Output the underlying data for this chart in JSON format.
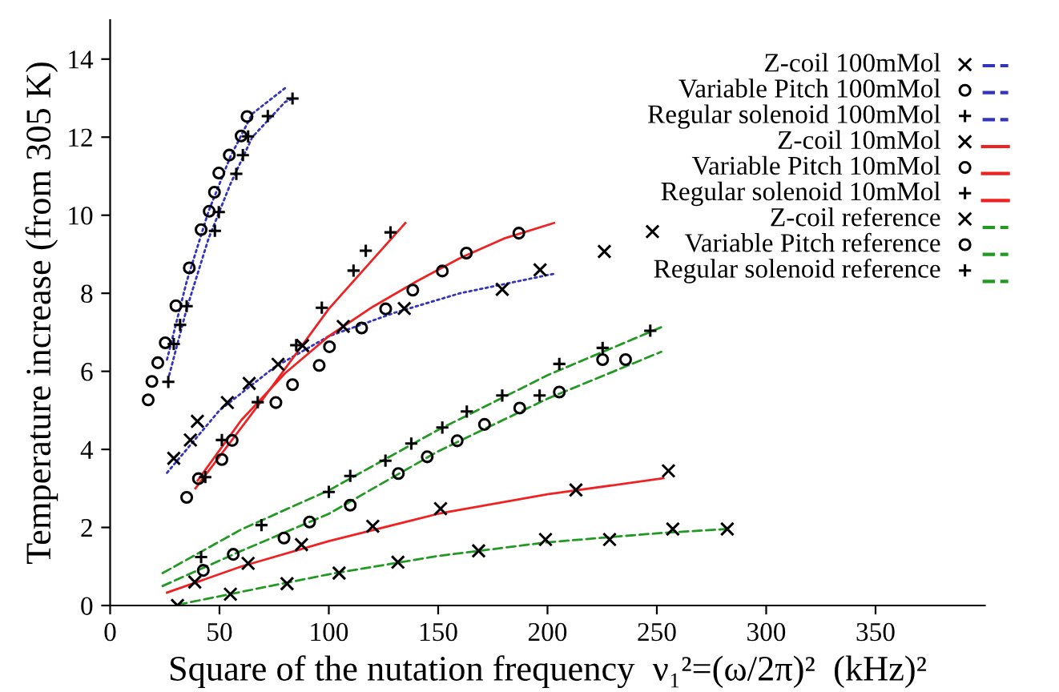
{
  "chart_data": {
    "type": "scatter",
    "xlabel": "Square of the nutation frequency  ν₁²=(ω/2π)²  (kHz)²",
    "ylabel": "Temperature increase (from 305 K)",
    "xlim": [
      0,
      400
    ],
    "ylim": [
      0,
      15
    ],
    "xticks": [
      0,
      50,
      100,
      150,
      200,
      250,
      300,
      350
    ],
    "yticks": [
      0,
      2,
      4,
      6,
      8,
      10,
      12,
      14
    ],
    "grid": false,
    "legend": "top right",
    "series": [
      {
        "name": "Z-coil 100mMol",
        "color": "#000000",
        "marker": "cross",
        "x": [
          29.1,
          36.7,
          39.9,
          53.6,
          63.6,
          76.8,
          88,
          106.6,
          134.5,
          179.3,
          196.6,
          226,
          248
        ],
        "values": [
          3.77,
          4.24,
          4.72,
          5.2,
          5.69,
          6.18,
          6.66,
          7.15,
          7.61,
          8.1,
          8.6,
          9.07,
          9.58
        ]
      },
      {
        "name": "Variable Pitch 100mMol",
        "color": "#000000",
        "marker": "circle",
        "x": [
          17.4,
          19.1,
          21.8,
          25.2,
          30.1,
          36.2,
          41.6,
          45.3,
          47.7,
          49.7,
          54.5,
          59.9,
          62.6
        ],
        "values": [
          5.27,
          5.74,
          6.22,
          6.73,
          7.68,
          8.65,
          9.63,
          10.1,
          10.59,
          11.08,
          11.54,
          12.03,
          12.53
        ]
      },
      {
        "name": "Regular solenoid 100mMol",
        "color": "#000000",
        "marker": "plus",
        "x": [
          26.6,
          29.1,
          32,
          35,
          47.9,
          49.7,
          57.7,
          60.7,
          63.1,
          72.1,
          83.4
        ],
        "values": [
          5.73,
          6.7,
          7.19,
          7.67,
          9.6,
          10.08,
          11.06,
          11.54,
          12.02,
          12.54,
          12.99
        ]
      },
      {
        "name": "Z-coil 10mMol",
        "color": "#000000",
        "marker": "cross",
        "x": [
          38.7,
          63.1,
          87.5,
          120.1,
          151.1,
          213,
          255.3
        ],
        "values": [
          0.6,
          1.08,
          1.56,
          2.03,
          2.48,
          2.96,
          3.45
        ]
      },
      {
        "name": "Variable Pitch 10mMol",
        "color": "#000000",
        "marker": "circle",
        "x": [
          35,
          40.4,
          51.1,
          55.8,
          75.8,
          83.4,
          95.6,
          100.3,
          115,
          126,
          138.4,
          151.9,
          162.9,
          186.9
        ],
        "values": [
          2.77,
          3.25,
          3.74,
          4.23,
          5.2,
          5.66,
          6.15,
          6.63,
          7.11,
          7.6,
          8.08,
          8.57,
          9.03,
          9.54
        ]
      },
      {
        "name": "Regular solenoid 10mMol",
        "color": "#000000",
        "marker": "plus",
        "x": [
          43.5,
          51.1,
          67.5,
          85.1,
          96.8,
          111.3,
          116.9,
          128.2
        ],
        "values": [
          3.29,
          4.24,
          5.21,
          6.67,
          7.63,
          8.58,
          9.09,
          9.56
        ]
      },
      {
        "name": "Z-coil reference",
        "color": "#000000",
        "marker": "cross",
        "x": [
          30.8,
          55,
          80.9,
          104.7,
          131.6,
          168.5,
          199.1,
          228.4,
          257.3,
          282.2
        ],
        "values": [
          0.0,
          0.29,
          0.56,
          0.83,
          1.11,
          1.4,
          1.69,
          1.69,
          1.96,
          1.96
        ]
      },
      {
        "name": "Variable Pitch reference",
        "color": "#000000",
        "marker": "circle",
        "x": [
          42.6,
          56.3,
          79.5,
          91.2,
          109.8,
          131.8,
          145,
          158.7,
          171.2,
          187.3,
          205.4,
          225.2,
          235.7
        ],
        "values": [
          0.9,
          1.31,
          1.73,
          2.14,
          2.57,
          3.38,
          3.81,
          4.22,
          4.64,
          5.06,
          5.47,
          6.3,
          6.3
        ]
      },
      {
        "name": "Regular solenoid reference",
        "color": "#000000",
        "marker": "plus",
        "x": [
          41.6,
          69.2,
          100,
          109.8,
          125.9,
          137.7,
          151.9,
          163.1,
          179.3,
          196.4,
          205.4,
          225.2,
          247
        ],
        "values": [
          1.24,
          2.06,
          2.91,
          3.32,
          3.71,
          4.15,
          4.56,
          4.97,
          5.38,
          5.38,
          6.19,
          6.6,
          7.04
        ]
      },
      {
        "type": "line",
        "color": "#3333bb",
        "line_style": "dotted",
        "x": [
          26,
          50,
          75,
          100,
          130,
          160,
          203
        ],
        "values": [
          3.4,
          5.0,
          6.1,
          6.9,
          7.5,
          8.0,
          8.5
        ]
      },
      {
        "type": "line",
        "color": "#3333bb",
        "line_style": "dotted",
        "x": [
          26,
          35,
          45,
          55,
          65,
          81
        ],
        "values": [
          6.3,
          8.3,
          10.1,
          11.5,
          12.6,
          13.3
        ]
      },
      {
        "type": "line",
        "color": "#3333bb",
        "line_style": "dotted",
        "x": [
          27,
          35,
          45,
          55,
          65,
          80,
          84
        ],
        "values": [
          5.9,
          7.6,
          9.4,
          10.8,
          12.0,
          12.9,
          13.0
        ]
      },
      {
        "type": "line",
        "color": "#ee2222",
        "line_style": "solid",
        "x": [
          26,
          60,
          100,
          150,
          200,
          253
        ],
        "values": [
          0.33,
          1.0,
          1.65,
          2.35,
          2.85,
          3.26
        ]
      },
      {
        "type": "line",
        "color": "#ee2222",
        "line_style": "solid",
        "x": [
          40,
          60,
          80,
          100,
          120,
          140,
          160,
          180,
          203
        ],
        "values": [
          3.2,
          4.75,
          5.95,
          6.9,
          7.65,
          8.3,
          8.9,
          9.4,
          9.8
        ]
      },
      {
        "type": "line",
        "color": "#ee2222",
        "line_style": "solid",
        "x": [
          39,
          70,
          100,
          135
        ],
        "values": [
          3.0,
          5.3,
          7.6,
          9.8
        ]
      },
      {
        "type": "line",
        "color": "#229922",
        "line_style": "dashed",
        "x": [
          31,
          60,
          100,
          150,
          200,
          250,
          282
        ],
        "values": [
          0.02,
          0.35,
          0.8,
          1.27,
          1.62,
          1.85,
          1.96
        ]
      },
      {
        "type": "line",
        "color": "#229922",
        "line_style": "dashed",
        "x": [
          24,
          60,
          100,
          150,
          200,
          252
        ],
        "values": [
          0.5,
          1.4,
          2.35,
          3.95,
          5.3,
          6.5
        ]
      },
      {
        "type": "line",
        "color": "#229922",
        "line_style": "dashed",
        "x": [
          24,
          60,
          100,
          150,
          200,
          252
        ],
        "values": [
          0.83,
          1.95,
          2.95,
          4.5,
          5.9,
          7.13
        ]
      }
    ]
  }
}
